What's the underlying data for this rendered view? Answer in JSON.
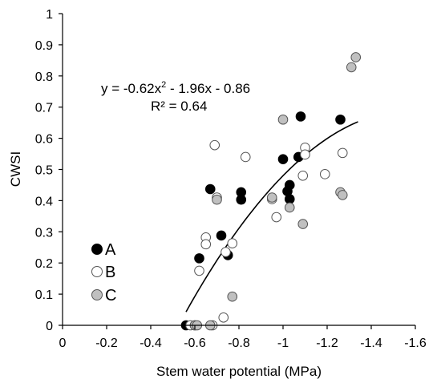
{
  "chart_data": {
    "type": "scatter",
    "title": "",
    "xlabel": "Stem water potential (MPa)",
    "ylabel": "CWSI",
    "xlim": [
      0,
      -1.6
    ],
    "ylim": [
      0,
      1
    ],
    "x_ticks": [
      0,
      -0.2,
      -0.4,
      -0.6,
      -0.8,
      -1,
      -1.2,
      -1.4,
      -1.6
    ],
    "x_tick_labels": [
      "0",
      "-0.2",
      "-0.4",
      "-0.6",
      "-0.8",
      "-1",
      "-1.2",
      "-1.4",
      "-1.6"
    ],
    "y_ticks": [
      0,
      0.1,
      0.2,
      0.3,
      0.4,
      0.5,
      0.6,
      0.7,
      0.8,
      0.9,
      1
    ],
    "y_tick_labels": [
      "0",
      "0.1",
      "0.2",
      "0.3",
      "0.4",
      "0.5",
      "0.6",
      "0.7",
      "0.8",
      "0.9",
      "1"
    ],
    "grid": false,
    "legend_position": "bottom-left",
    "annotations": {
      "equation_prefix": "y = -0.62x",
      "equation_sup": "2",
      "equation_suffix": " - 1.96x - 0.86",
      "r_squared": "R² = 0.64"
    },
    "fit": {
      "a": -0.62,
      "b": -1.96,
      "c": -0.86,
      "x_start": -0.56,
      "x_end": -1.34,
      "color": "#000000"
    },
    "series": [
      {
        "name": "A",
        "fill": "#000000",
        "stroke": "#000000",
        "points": [
          {
            "x": -0.56,
            "y": 0.0
          },
          {
            "x": -0.62,
            "y": 0.215
          },
          {
            "x": -0.67,
            "y": 0.437
          },
          {
            "x": -0.72,
            "y": 0.288
          },
          {
            "x": -0.75,
            "y": 0.225
          },
          {
            "x": -0.81,
            "y": 0.427
          },
          {
            "x": -0.81,
            "y": 0.403
          },
          {
            "x": -1.0,
            "y": 0.533
          },
          {
            "x": -1.02,
            "y": 0.43
          },
          {
            "x": -1.03,
            "y": 0.45
          },
          {
            "x": -1.03,
            "y": 0.405
          },
          {
            "x": -1.07,
            "y": 0.54
          },
          {
            "x": -1.08,
            "y": 0.67
          },
          {
            "x": -1.26,
            "y": 0.66
          }
        ]
      },
      {
        "name": "B",
        "fill": "#ffffff",
        "stroke": "#555555",
        "points": [
          {
            "x": -0.58,
            "y": 0.0
          },
          {
            "x": -0.6,
            "y": 0.0
          },
          {
            "x": -0.62,
            "y": 0.175
          },
          {
            "x": -0.65,
            "y": 0.282
          },
          {
            "x": -0.65,
            "y": 0.26
          },
          {
            "x": -0.68,
            "y": 0.0
          },
          {
            "x": -0.69,
            "y": 0.578
          },
          {
            "x": -0.7,
            "y": 0.41
          },
          {
            "x": -0.73,
            "y": 0.025
          },
          {
            "x": -0.74,
            "y": 0.235
          },
          {
            "x": -0.77,
            "y": 0.263
          },
          {
            "x": -0.83,
            "y": 0.54
          },
          {
            "x": -0.95,
            "y": 0.405
          },
          {
            "x": -0.97,
            "y": 0.347
          },
          {
            "x": -1.09,
            "y": 0.48
          },
          {
            "x": -1.1,
            "y": 0.57
          },
          {
            "x": -1.1,
            "y": 0.548
          },
          {
            "x": -1.19,
            "y": 0.485
          },
          {
            "x": -1.27,
            "y": 0.553
          }
        ]
      },
      {
        "name": "C",
        "fill": "#c0c0c0",
        "stroke": "#555555",
        "points": [
          {
            "x": -0.6,
            "y": 0.0
          },
          {
            "x": -0.61,
            "y": 0.0
          },
          {
            "x": -0.67,
            "y": 0.0
          },
          {
            "x": -0.7,
            "y": 0.403
          },
          {
            "x": -0.77,
            "y": 0.092
          },
          {
            "x": -0.95,
            "y": 0.41
          },
          {
            "x": -1.0,
            "y": 0.66
          },
          {
            "x": -1.03,
            "y": 0.378
          },
          {
            "x": -1.09,
            "y": 0.325
          },
          {
            "x": -1.26,
            "y": 0.427
          },
          {
            "x": -1.27,
            "y": 0.418
          },
          {
            "x": -1.31,
            "y": 0.828
          },
          {
            "x": -1.33,
            "y": 0.86
          }
        ]
      }
    ]
  }
}
